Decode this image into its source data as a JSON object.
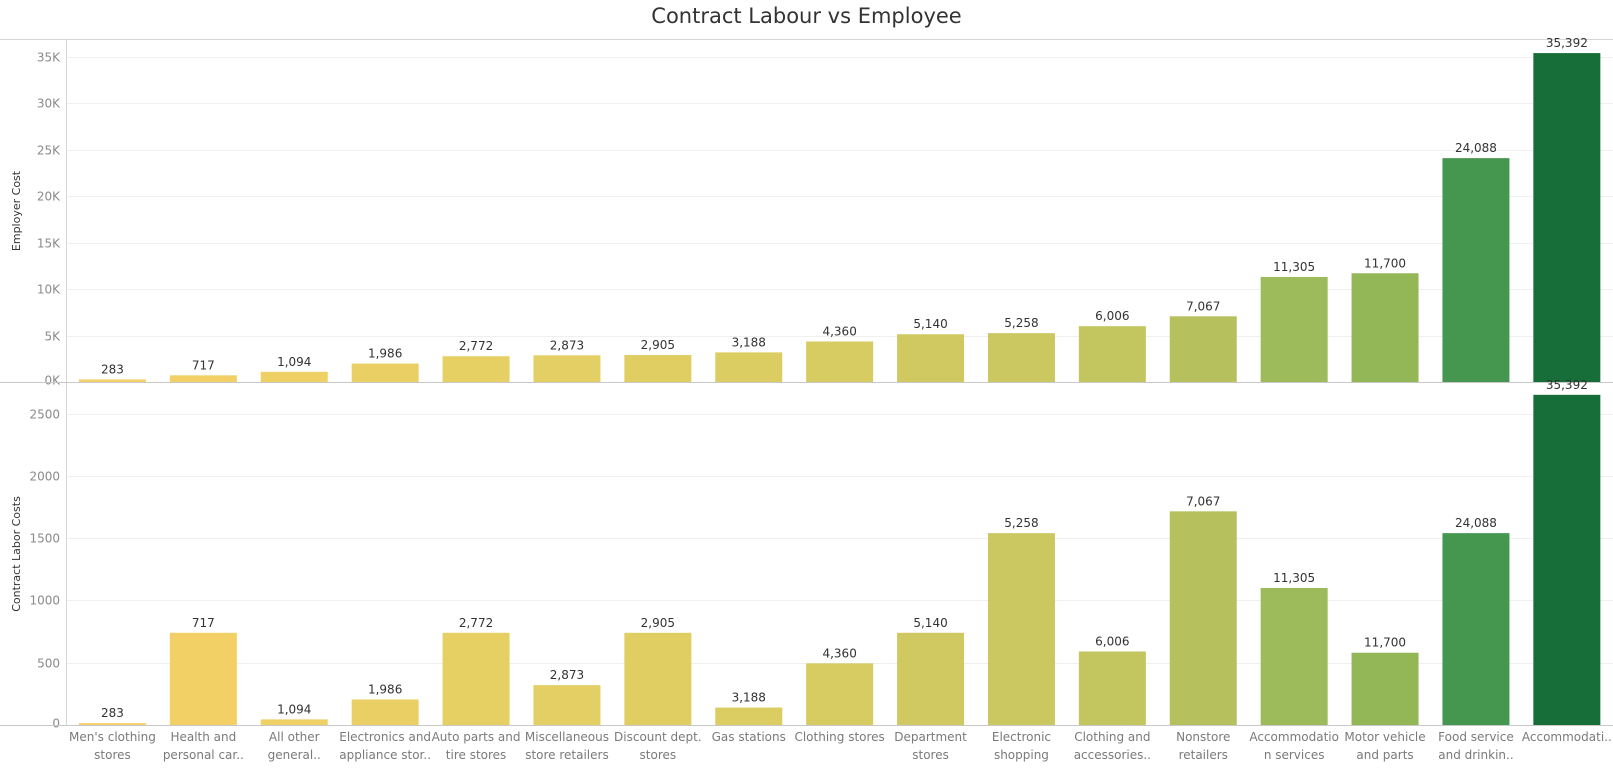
{
  "chart_data": {
    "type": "bar",
    "title": "Contract Labour vs Employee",
    "categories": [
      [
        "Men's clothing",
        "stores"
      ],
      [
        "Health and",
        "personal car.."
      ],
      [
        "All other",
        "general.."
      ],
      [
        "Electronics and",
        "appliance stor.."
      ],
      [
        "Auto parts and",
        "tire stores"
      ],
      [
        "Miscellaneous",
        "store retailers"
      ],
      [
        "Discount dept.",
        "stores"
      ],
      [
        "Gas stations"
      ],
      [
        "Clothing stores"
      ],
      [
        "Department",
        "stores"
      ],
      [
        "Electronic",
        "shopping"
      ],
      [
        "Clothing and",
        "accessories.."
      ],
      [
        "Nonstore",
        "retailers"
      ],
      [
        "Accommodatio",
        "n services"
      ],
      [
        "Motor vehicle",
        "and parts"
      ],
      [
        "Food service",
        "and drinkin.."
      ],
      [
        "Accommodati.."
      ]
    ],
    "data_labels": [
      "283",
      "717",
      "1,094",
      "1,986",
      "2,772",
      "2,873",
      "2,905",
      "3,188",
      "4,360",
      "5,140",
      "5,258",
      "6,006",
      "7,067",
      "11,305",
      "11,700",
      "24,088",
      "35,392"
    ],
    "colors": [
      "#f5d06a",
      "#f2d066",
      "#efd064",
      "#ead064",
      "#e6cf63",
      "#e3cf63",
      "#e0ce63",
      "#dccd63",
      "#d6cc62",
      "#d0c962",
      "#cbc761",
      "#c3c55f",
      "#b6c05c",
      "#9dbb5a",
      "#93b657",
      "#45964f",
      "#176e39"
    ],
    "panels": [
      {
        "ylabel": "Employer Cost",
        "ylim": [
          0,
          36800
        ],
        "ticks": [
          0,
          5000,
          10000,
          15000,
          20000,
          25000,
          30000,
          35000
        ],
        "tick_labels": [
          "0K",
          "5K",
          "10K",
          "15K",
          "20K",
          "25K",
          "30K",
          "35K"
        ],
        "values": [
          283,
          717,
          1094,
          1986,
          2772,
          2873,
          2905,
          3188,
          4360,
          5140,
          5258,
          6006,
          7067,
          11305,
          11700,
          24088,
          35392
        ]
      },
      {
        "ylabel": "Contract Labor Costs",
        "ylim": [
          0,
          2745
        ],
        "ticks": [
          0,
          500,
          1000,
          1500,
          2000,
          2500
        ],
        "tick_labels": [
          "0",
          "500",
          "1000",
          "1500",
          "2000",
          "2500"
        ],
        "values": [
          15,
          740,
          45,
          205,
          740,
          320,
          740,
          140,
          495,
          740,
          1540,
          590,
          1715,
          1100,
          580,
          1540,
          2650
        ]
      }
    ],
    "grid": true
  }
}
